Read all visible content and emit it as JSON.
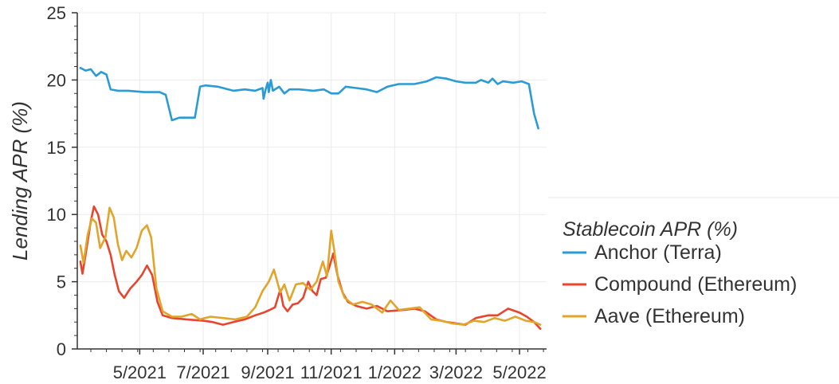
{
  "chart_data": {
    "type": "line",
    "title": "",
    "xlabel": "",
    "ylabel": "Lending APR (%)",
    "ylim": [
      0,
      25
    ],
    "xlim": [
      "2021-03-02",
      "2022-05-27"
    ],
    "yticks": [
      "0",
      "5",
      "10",
      "15",
      "20",
      "25"
    ],
    "xticks": [
      {
        "date": "2021-05-01",
        "label": "5/2021"
      },
      {
        "date": "2021-07-01",
        "label": "7/2021"
      },
      {
        "date": "2021-09-01",
        "label": "9/2021"
      },
      {
        "date": "2021-11-01",
        "label": "11/2021"
      },
      {
        "date": "2022-01-01",
        "label": "1/2022"
      },
      {
        "date": "2022-03-01",
        "label": "3/2022"
      },
      {
        "date": "2022-05-01",
        "label": "5/2022"
      }
    ],
    "grid": true,
    "legend": {
      "title": "Stablecoin APR (%)",
      "placement": "right"
    },
    "series": [
      {
        "name": "Anchor (Terra)",
        "color": "#2b9bd6",
        "points": [
          [
            "2021-03-05",
            20.9
          ],
          [
            "2021-03-10",
            20.7
          ],
          [
            "2021-03-15",
            20.8
          ],
          [
            "2021-03-20",
            20.3
          ],
          [
            "2021-03-25",
            20.6
          ],
          [
            "2021-03-30",
            20.4
          ],
          [
            "2021-04-03",
            19.3
          ],
          [
            "2021-04-10",
            19.2
          ],
          [
            "2021-04-20",
            19.2
          ],
          [
            "2021-05-05",
            19.1
          ],
          [
            "2021-05-20",
            19.1
          ],
          [
            "2021-05-26",
            18.9
          ],
          [
            "2021-06-01",
            17.0
          ],
          [
            "2021-06-08",
            17.2
          ],
          [
            "2021-06-18",
            17.2
          ],
          [
            "2021-06-23",
            17.2
          ],
          [
            "2021-06-28",
            19.5
          ],
          [
            "2021-07-03",
            19.6
          ],
          [
            "2021-07-15",
            19.5
          ],
          [
            "2021-07-30",
            19.2
          ],
          [
            "2021-08-10",
            19.3
          ],
          [
            "2021-08-20",
            19.2
          ],
          [
            "2021-08-27",
            19.4
          ],
          [
            "2021-08-28",
            18.6
          ],
          [
            "2021-08-30",
            19.3
          ],
          [
            "2021-09-01",
            19.8
          ],
          [
            "2021-09-02",
            19.1
          ],
          [
            "2021-09-04",
            20.0
          ],
          [
            "2021-09-06",
            19.2
          ],
          [
            "2021-09-12",
            19.5
          ],
          [
            "2021-09-17",
            19.0
          ],
          [
            "2021-09-22",
            19.3
          ],
          [
            "2021-10-01",
            19.3
          ],
          [
            "2021-10-15",
            19.2
          ],
          [
            "2021-10-25",
            19.3
          ],
          [
            "2021-11-01",
            19.0
          ],
          [
            "2021-11-08",
            19.0
          ],
          [
            "2021-11-15",
            19.5
          ],
          [
            "2021-11-25",
            19.4
          ],
          [
            "2021-12-05",
            19.3
          ],
          [
            "2021-12-15",
            19.1
          ],
          [
            "2021-12-25",
            19.5
          ],
          [
            "2022-01-05",
            19.7
          ],
          [
            "2022-01-20",
            19.7
          ],
          [
            "2022-02-01",
            19.9
          ],
          [
            "2022-02-10",
            20.2
          ],
          [
            "2022-02-20",
            20.1
          ],
          [
            "2022-03-01",
            19.9
          ],
          [
            "2022-03-10",
            19.8
          ],
          [
            "2022-03-20",
            19.8
          ],
          [
            "2022-03-25",
            20.0
          ],
          [
            "2022-04-01",
            19.8
          ],
          [
            "2022-04-05",
            20.1
          ],
          [
            "2022-04-10",
            19.7
          ],
          [
            "2022-04-15",
            19.9
          ],
          [
            "2022-04-25",
            19.8
          ],
          [
            "2022-05-03",
            19.9
          ],
          [
            "2022-05-10",
            19.7
          ],
          [
            "2022-05-15",
            17.5
          ],
          [
            "2022-05-19",
            16.4
          ]
        ]
      },
      {
        "name": "Compound (Ethereum)",
        "color": "#e8452f",
        "points": [
          [
            "2021-03-05",
            6.5
          ],
          [
            "2021-03-07",
            5.6
          ],
          [
            "2021-03-10",
            7.0
          ],
          [
            "2021-03-15",
            9.5
          ],
          [
            "2021-03-18",
            10.6
          ],
          [
            "2021-03-22",
            10.0
          ],
          [
            "2021-03-26",
            8.5
          ],
          [
            "2021-03-30",
            8.0
          ],
          [
            "2021-04-03",
            7.0
          ],
          [
            "2021-04-07",
            5.5
          ],
          [
            "2021-04-11",
            4.3
          ],
          [
            "2021-04-16",
            3.8
          ],
          [
            "2021-04-22",
            4.5
          ],
          [
            "2021-04-28",
            5.0
          ],
          [
            "2021-05-03",
            5.5
          ],
          [
            "2021-05-08",
            6.2
          ],
          [
            "2021-05-13",
            5.5
          ],
          [
            "2021-05-18",
            3.5
          ],
          [
            "2021-05-23",
            2.5
          ],
          [
            "2021-06-01",
            2.3
          ],
          [
            "2021-06-15",
            2.2
          ],
          [
            "2021-07-01",
            2.1
          ],
          [
            "2021-07-10",
            2.0
          ],
          [
            "2021-07-20",
            1.8
          ],
          [
            "2021-07-30",
            2.0
          ],
          [
            "2021-08-10",
            2.2
          ],
          [
            "2021-08-20",
            2.5
          ],
          [
            "2021-08-28",
            2.7
          ],
          [
            "2021-09-03",
            2.9
          ],
          [
            "2021-09-08",
            3.1
          ],
          [
            "2021-09-13",
            4.4
          ],
          [
            "2021-09-16",
            3.2
          ],
          [
            "2021-09-20",
            2.8
          ],
          [
            "2021-09-25",
            3.3
          ],
          [
            "2021-09-30",
            3.4
          ],
          [
            "2021-10-05",
            3.8
          ],
          [
            "2021-10-10",
            5.0
          ],
          [
            "2021-10-14",
            4.3
          ],
          [
            "2021-10-18",
            4.0
          ],
          [
            "2021-10-22",
            5.2
          ],
          [
            "2021-10-27",
            5.3
          ],
          [
            "2021-10-31",
            6.3
          ],
          [
            "2021-11-03",
            7.1
          ],
          [
            "2021-11-07",
            5.5
          ],
          [
            "2021-11-12",
            4.2
          ],
          [
            "2021-11-17",
            3.5
          ],
          [
            "2021-11-25",
            3.2
          ],
          [
            "2021-12-05",
            3.0
          ],
          [
            "2021-12-15",
            3.2
          ],
          [
            "2021-12-25",
            2.8
          ],
          [
            "2022-01-10",
            2.9
          ],
          [
            "2022-01-20",
            3.0
          ],
          [
            "2022-01-30",
            2.8
          ],
          [
            "2022-02-10",
            2.2
          ],
          [
            "2022-02-20",
            2.0
          ],
          [
            "2022-03-01",
            1.9
          ],
          [
            "2022-03-10",
            1.8
          ],
          [
            "2022-03-20",
            2.3
          ],
          [
            "2022-04-01",
            2.5
          ],
          [
            "2022-04-10",
            2.5
          ],
          [
            "2022-04-20",
            3.0
          ],
          [
            "2022-05-01",
            2.7
          ],
          [
            "2022-05-08",
            2.4
          ],
          [
            "2022-05-15",
            2.0
          ],
          [
            "2022-05-21",
            1.5
          ]
        ]
      },
      {
        "name": "Aave (Ethereum)",
        "color": "#e0a52a",
        "points": [
          [
            "2021-03-05",
            7.7
          ],
          [
            "2021-03-08",
            6.4
          ],
          [
            "2021-03-12",
            8.5
          ],
          [
            "2021-03-16",
            9.7
          ],
          [
            "2021-03-20",
            9.4
          ],
          [
            "2021-03-24",
            7.5
          ],
          [
            "2021-03-29",
            8.3
          ],
          [
            "2021-04-02",
            10.5
          ],
          [
            "2021-04-06",
            9.8
          ],
          [
            "2021-04-10",
            7.8
          ],
          [
            "2021-04-14",
            6.6
          ],
          [
            "2021-04-18",
            7.3
          ],
          [
            "2021-04-23",
            6.8
          ],
          [
            "2021-04-28",
            7.5
          ],
          [
            "2021-05-03",
            8.8
          ],
          [
            "2021-05-08",
            9.2
          ],
          [
            "2021-05-12",
            8.3
          ],
          [
            "2021-05-17",
            4.5
          ],
          [
            "2021-05-23",
            2.8
          ],
          [
            "2021-06-01",
            2.4
          ],
          [
            "2021-06-10",
            2.4
          ],
          [
            "2021-06-20",
            2.6
          ],
          [
            "2021-06-28",
            2.2
          ],
          [
            "2021-07-08",
            2.4
          ],
          [
            "2021-07-20",
            2.3
          ],
          [
            "2021-08-01",
            2.2
          ],
          [
            "2021-08-12",
            2.4
          ],
          [
            "2021-08-20",
            3.1
          ],
          [
            "2021-08-27",
            4.3
          ],
          [
            "2021-09-02",
            5.0
          ],
          [
            "2021-09-07",
            5.9
          ],
          [
            "2021-09-13",
            4.2
          ],
          [
            "2021-09-17",
            4.8
          ],
          [
            "2021-09-22",
            3.6
          ],
          [
            "2021-09-28",
            4.8
          ],
          [
            "2021-10-05",
            4.9
          ],
          [
            "2021-10-12",
            4.4
          ],
          [
            "2021-10-18",
            5.0
          ],
          [
            "2021-10-24",
            6.5
          ],
          [
            "2021-10-28",
            5.4
          ],
          [
            "2021-11-01",
            8.8
          ],
          [
            "2021-11-04",
            7.3
          ],
          [
            "2021-11-08",
            5.0
          ],
          [
            "2021-11-14",
            3.8
          ],
          [
            "2021-11-22",
            3.3
          ],
          [
            "2021-12-01",
            3.5
          ],
          [
            "2021-12-10",
            3.3
          ],
          [
            "2021-12-20",
            2.7
          ],
          [
            "2021-12-28",
            3.6
          ],
          [
            "2022-01-05",
            2.9
          ],
          [
            "2022-01-15",
            3.0
          ],
          [
            "2022-01-25",
            3.1
          ],
          [
            "2022-02-05",
            2.2
          ],
          [
            "2022-02-15",
            2.1
          ],
          [
            "2022-02-25",
            1.9
          ],
          [
            "2022-03-08",
            1.8
          ],
          [
            "2022-03-18",
            2.1
          ],
          [
            "2022-03-28",
            2.0
          ],
          [
            "2022-04-07",
            2.3
          ],
          [
            "2022-04-17",
            2.1
          ],
          [
            "2022-04-27",
            2.4
          ],
          [
            "2022-05-07",
            2.1
          ],
          [
            "2022-05-15",
            2.0
          ],
          [
            "2022-05-21",
            1.8
          ]
        ]
      }
    ]
  }
}
